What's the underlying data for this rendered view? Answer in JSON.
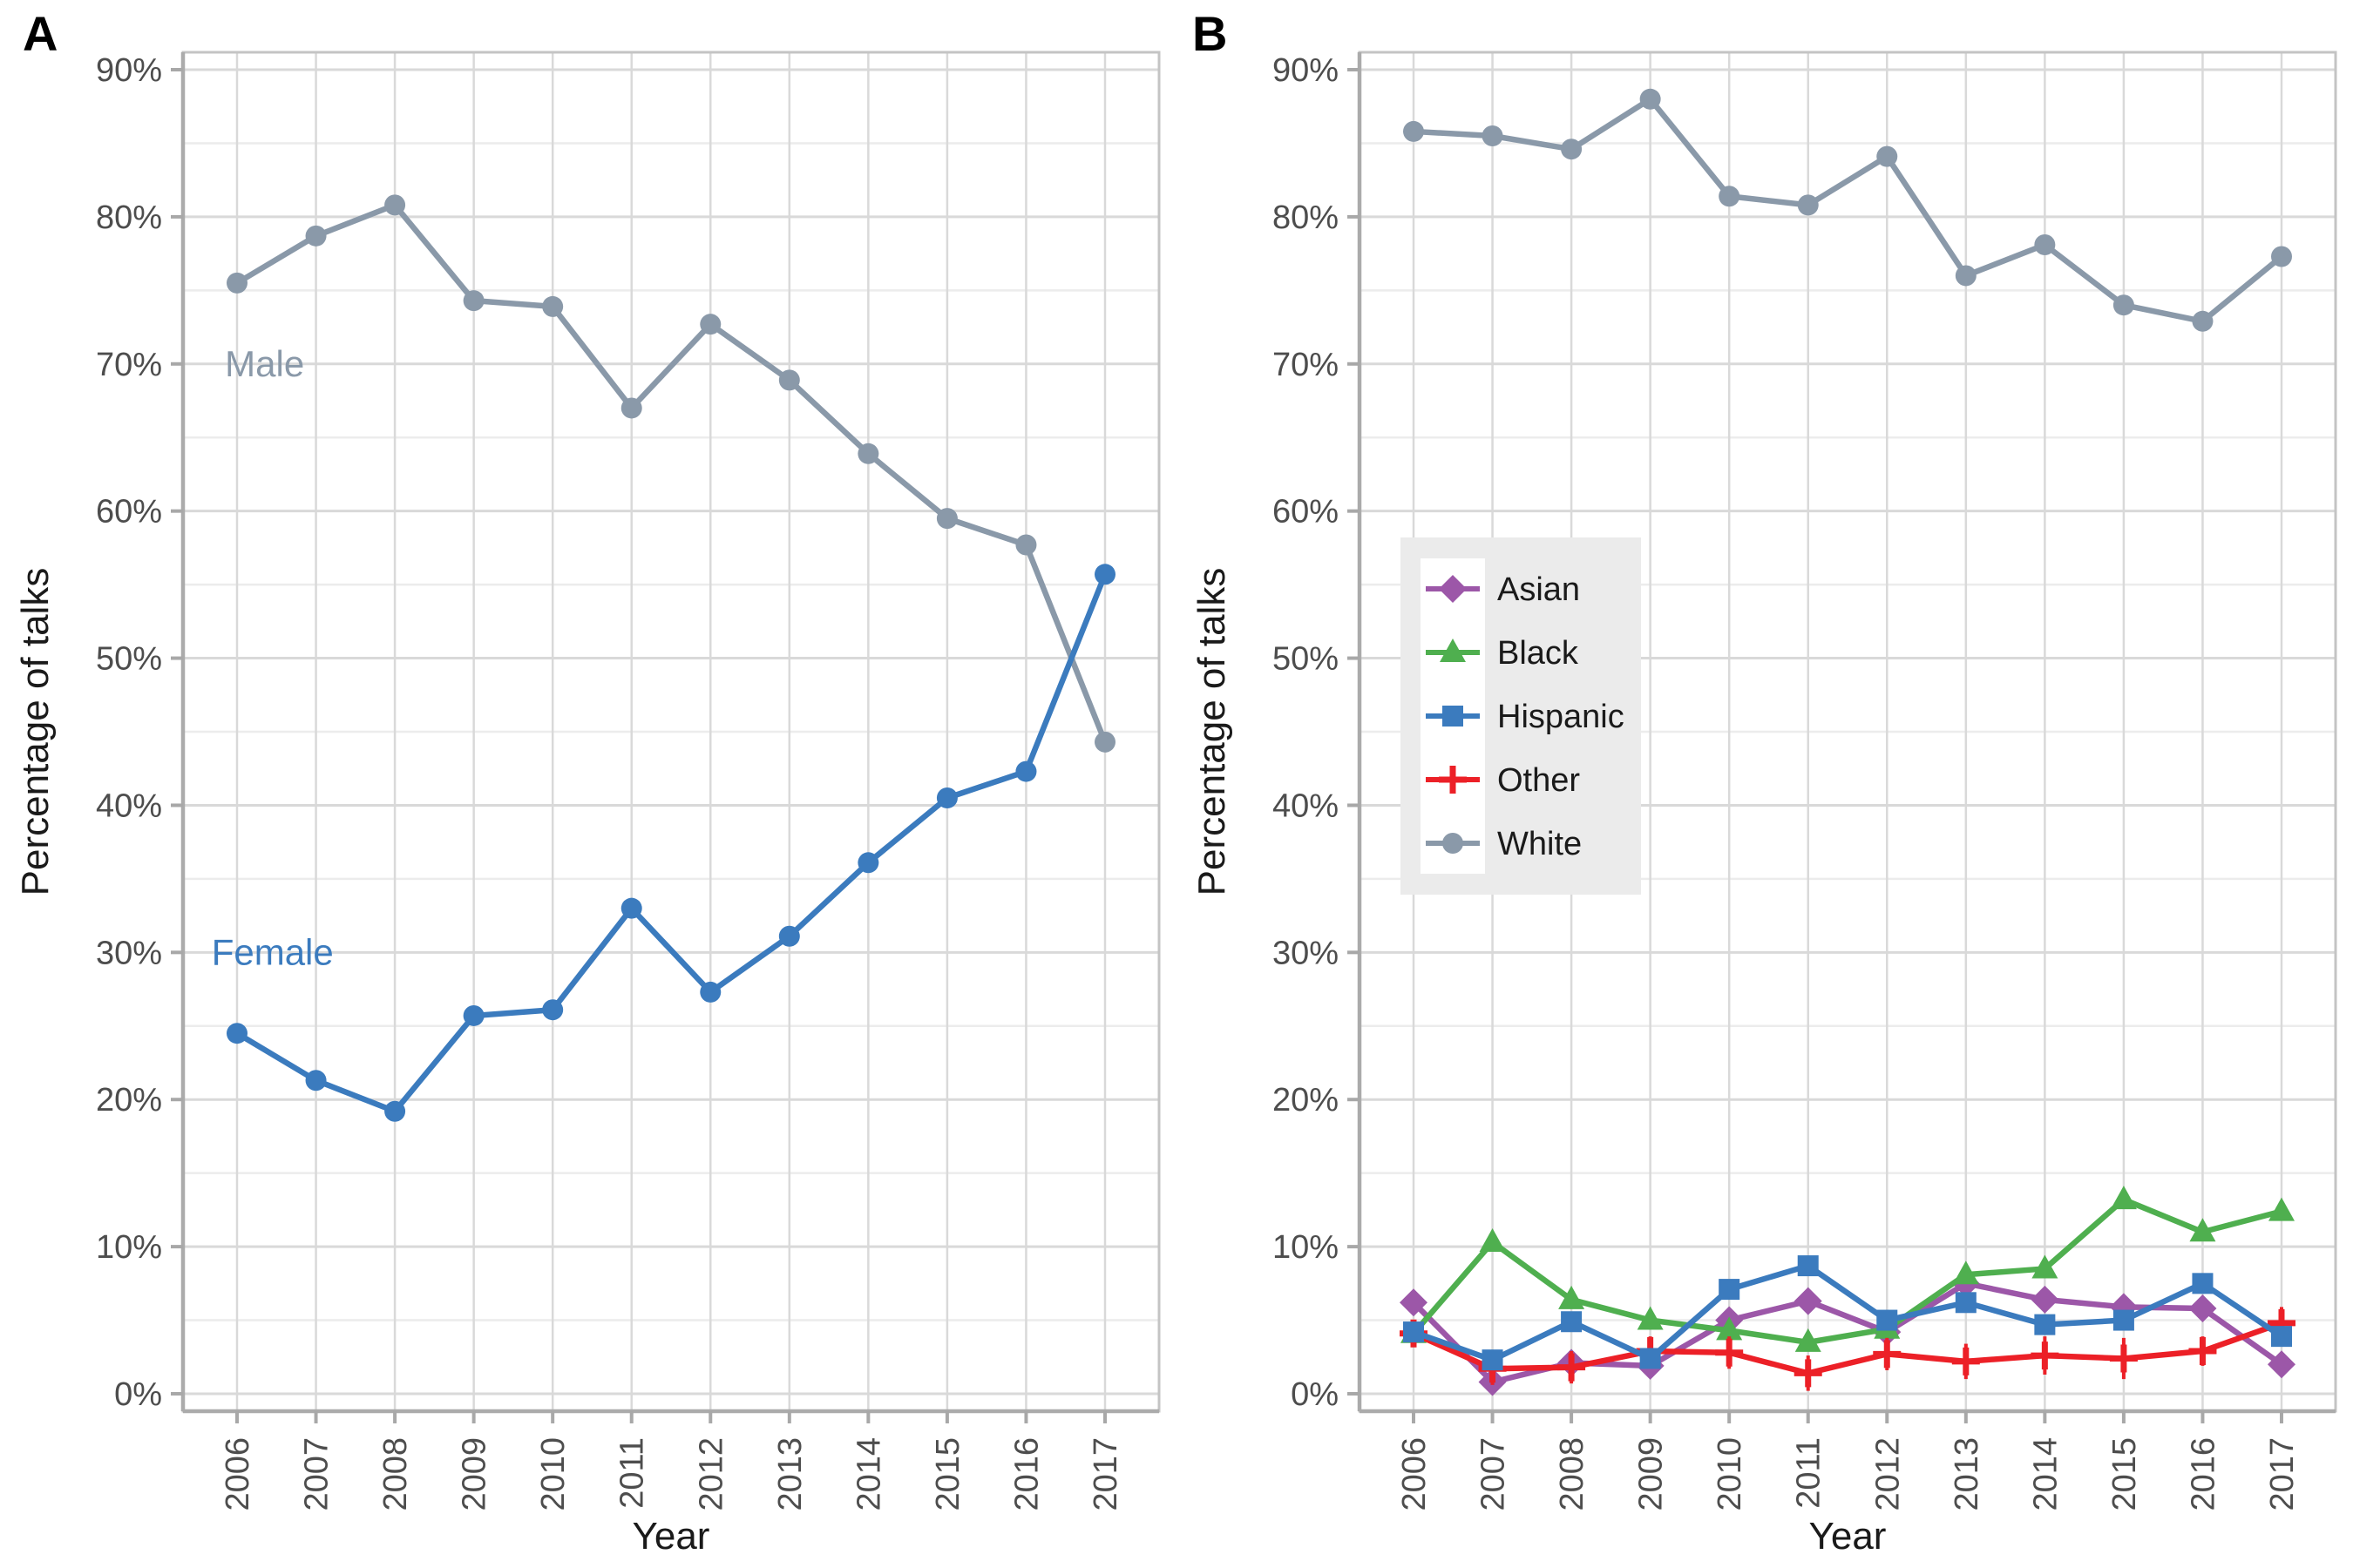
{
  "figure": {
    "background": "#FFFFFF",
    "theme": {
      "grid_major": "#D9D9D9",
      "grid_minor": "#ECECEC",
      "panel_border": "#C4C4C4",
      "axis_line": "#ABABAB",
      "tick_color": "#A8A8A8",
      "tick_label_color": "#4D4D4D",
      "axis_title_color": "#1A1A1A",
      "panel_letter_color": "#000000",
      "legend_bg": "#EBEBEB",
      "legend_key_bg": "#FFFFFF",
      "legend_text_color": "#1A1A1A"
    }
  },
  "chart_data": [
    {
      "panel_label": "A",
      "type": "line",
      "x": [
        2006,
        2007,
        2008,
        2009,
        2010,
        2011,
        2012,
        2013,
        2014,
        2015,
        2016,
        2017
      ],
      "xlabel": "Year",
      "ylabel": "Percentage of talks",
      "ylim": [
        0,
        90
      ],
      "ytick_values": [
        0,
        10,
        20,
        30,
        40,
        50,
        60,
        70,
        80,
        90
      ],
      "ytick_labels": [
        "0%",
        "10%",
        "20%",
        "30%",
        "40%",
        "50%",
        "60%",
        "70%",
        "80%",
        "90%"
      ],
      "grid": {
        "major": true,
        "minor_y_step": 5
      },
      "legend": null,
      "series": [
        {
          "name": "Male",
          "color": "#8A99A9",
          "marker": "circle",
          "values": [
            75.5,
            78.7,
            80.8,
            74.3,
            73.9,
            67.0,
            72.7,
            68.9,
            63.9,
            59.5,
            57.7,
            44.3
          ]
        },
        {
          "name": "Female",
          "color": "#3B7BBE",
          "marker": "circle",
          "values": [
            24.5,
            21.3,
            19.2,
            25.7,
            26.1,
            33.0,
            27.3,
            31.1,
            36.1,
            40.5,
            42.3,
            55.7
          ]
        }
      ],
      "annotations": [
        {
          "text": "Male",
          "x": 2006.35,
          "y": 70,
          "color": "#8A99A9"
        },
        {
          "text": "Female",
          "x": 2006.45,
          "y": 30,
          "color": "#3B7BBE"
        }
      ]
    },
    {
      "panel_label": "B",
      "type": "line",
      "x": [
        2006,
        2007,
        2008,
        2009,
        2010,
        2011,
        2012,
        2013,
        2014,
        2015,
        2016,
        2017
      ],
      "xlabel": "Year",
      "ylabel": "Percentage of talks",
      "ylim": [
        0,
        90
      ],
      "ytick_values": [
        0,
        10,
        20,
        30,
        40,
        50,
        60,
        70,
        80,
        90
      ],
      "ytick_labels": [
        "0%",
        "10%",
        "20%",
        "30%",
        "40%",
        "50%",
        "60%",
        "70%",
        "80%",
        "90%"
      ],
      "grid": {
        "major": true,
        "minor_y_step": 5
      },
      "legend": {
        "position": "center-left-inside",
        "entries": [
          "Asian",
          "Black",
          "Hispanic",
          "Other",
          "White"
        ]
      },
      "series": [
        {
          "name": "Asian",
          "color": "#9C57A8",
          "marker": "diamond",
          "values": [
            6.2,
            0.8,
            2.1,
            1.9,
            5.0,
            6.3,
            4.2,
            7.5,
            6.4,
            5.9,
            5.8,
            2.0
          ]
        },
        {
          "name": "Black",
          "color": "#4FAF4F",
          "marker": "triangle",
          "values": [
            4.1,
            10.3,
            6.4,
            5.0,
            4.3,
            3.5,
            4.4,
            8.1,
            8.5,
            13.2,
            11.0,
            12.4
          ]
        },
        {
          "name": "Hispanic",
          "color": "#3B7BBE",
          "marker": "square",
          "values": [
            4.2,
            2.3,
            4.9,
            2.4,
            7.1,
            8.7,
            5.0,
            6.2,
            4.7,
            5.0,
            7.5,
            3.9
          ]
        },
        {
          "name": "Other",
          "color": "#EC2027",
          "marker": "plus",
          "values": [
            4.1,
            1.7,
            1.8,
            2.9,
            2.8,
            1.4,
            2.7,
            2.2,
            2.6,
            2.4,
            2.9,
            4.8
          ],
          "errors": [
            0.6,
            1.1,
            1.1,
            1.0,
            1.1,
            1.2,
            1.1,
            1.2,
            1.3,
            1.4,
            1.0,
            1.1
          ]
        },
        {
          "name": "White",
          "color": "#8A99A9",
          "marker": "circle",
          "values": [
            85.8,
            85.5,
            84.6,
            88.0,
            81.4,
            80.8,
            84.1,
            76.0,
            78.1,
            74.0,
            72.9,
            77.3
          ]
        }
      ],
      "annotations": []
    }
  ]
}
